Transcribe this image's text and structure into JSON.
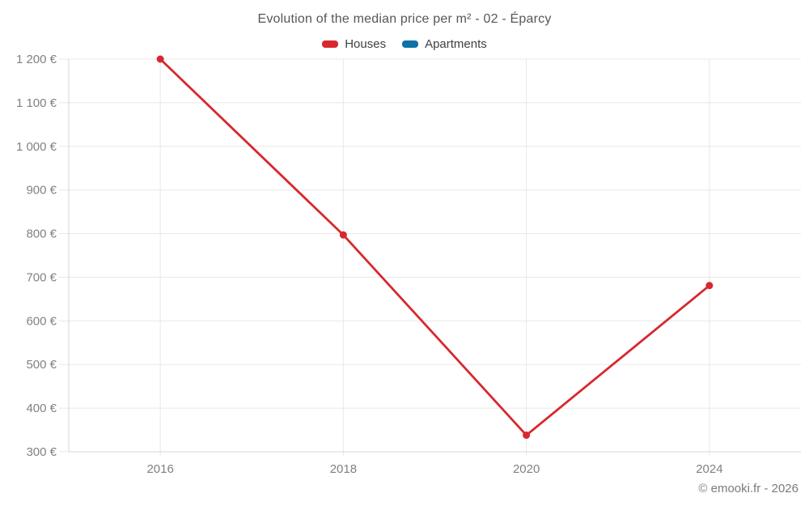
{
  "title": "Evolution of the median price per m² - 02 - Éparcy",
  "footer": "© emooki.fr - 2026",
  "legend": [
    {
      "label": "Houses",
      "color": "#d7282e"
    },
    {
      "label": "Apartments",
      "color": "#0d72a5"
    }
  ],
  "colors": {
    "houses": "#d7282e",
    "apartments": "#0d72a5",
    "gridline": "#e8e8e8",
    "axis": "#d6d6d6",
    "tick_label": "#818181",
    "title_text": "#565656"
  },
  "chart_data": {
    "type": "line",
    "x": [
      "2016",
      "2018",
      "2020",
      "2024"
    ],
    "series": [
      {
        "name": "Houses",
        "color": "#d7282e",
        "values": [
          1200,
          797,
          338,
          681
        ]
      },
      {
        "name": "Apartments",
        "color": "#0d72a5",
        "values": []
      }
    ],
    "title": "Evolution of the median price per m² - 02 - Éparcy",
    "xlabel": "",
    "ylabel": "",
    "ylim": [
      300,
      1200
    ],
    "ytick_step": 100,
    "ytick_labels": [
      "300 €",
      "400 €",
      "500 €",
      "600 €",
      "700 €",
      "800 €",
      "900 €",
      "1 000 €",
      "1 100 €",
      "1 200 €"
    ],
    "grid": true,
    "legend_position": "top"
  }
}
